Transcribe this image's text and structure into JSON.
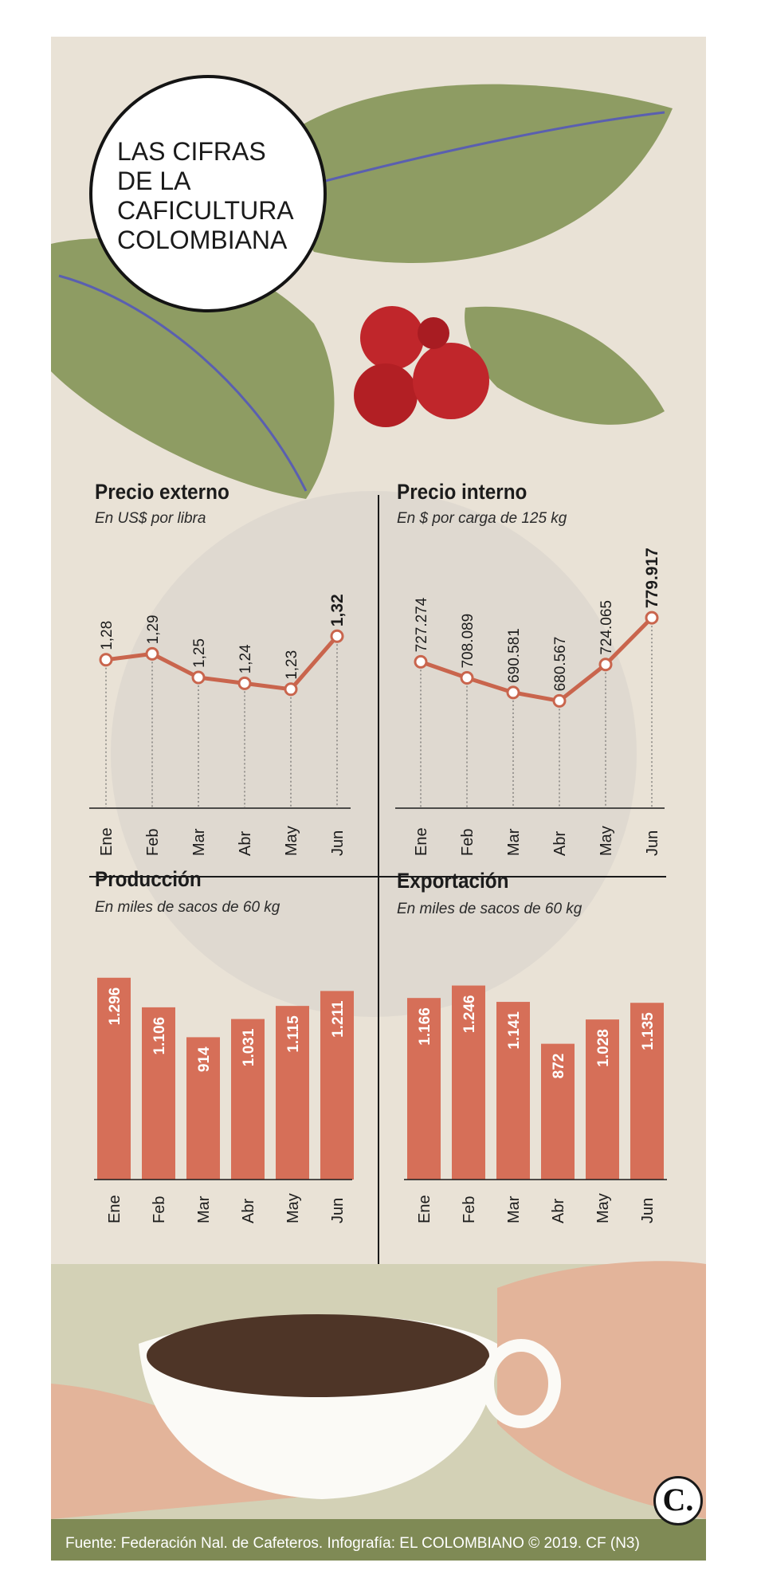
{
  "title": "LAS CIFRAS\nDE LA\nCAFICULTURA\nCOLOMBIANA",
  "colors": {
    "accent": "#d66f58",
    "line": "#c9654d",
    "background": "#e9e2d6",
    "leaf": "#8e9c63",
    "berry": "#c0262b"
  },
  "chart_data": [
    {
      "id": "precio-externo",
      "type": "line",
      "title": "Precio externo",
      "subtitle": "En US$ por libra",
      "categories": [
        "Ene",
        "Feb",
        "Mar",
        "Abr",
        "May",
        "Jun"
      ],
      "values": [
        1.28,
        1.29,
        1.25,
        1.24,
        1.23,
        1.32
      ],
      "labels": [
        "1,28",
        "1,29",
        "1,25",
        "1,24",
        "1,23",
        "1,32"
      ],
      "highlight_index": 5,
      "ylim": [
        1.15,
        1.35
      ]
    },
    {
      "id": "precio-interno",
      "type": "line",
      "title": "Precio interno",
      "subtitle": "En $ por carga de 125 kg",
      "categories": [
        "Ene",
        "Feb",
        "Mar",
        "Abr",
        "May",
        "Jun"
      ],
      "values": [
        727274,
        708089,
        690581,
        680567,
        724065,
        779917
      ],
      "labels": [
        "727.274",
        "708.089",
        "690.581",
        "680.567",
        "724.065",
        "779.917"
      ],
      "highlight_index": 5,
      "ylim": [
        600000,
        800000
      ]
    },
    {
      "id": "produccion",
      "type": "bar",
      "title": "Producción",
      "subtitle": "En miles de sacos de 60 kg",
      "categories": [
        "Ene",
        "Feb",
        "Mar",
        "Abr",
        "May",
        "Jun"
      ],
      "values": [
        1296,
        1106,
        914,
        1031,
        1115,
        1211
      ],
      "labels": [
        "1.296",
        "1.106",
        "914",
        "1.031",
        "1.115",
        "1.211"
      ],
      "ylim": [
        0,
        1300
      ]
    },
    {
      "id": "exportacion",
      "type": "bar",
      "title": "Exportación",
      "subtitle": "En miles de sacos de 60 kg",
      "categories": [
        "Ene",
        "Feb",
        "Mar",
        "Abr",
        "May",
        "Jun"
      ],
      "values": [
        1166,
        1246,
        1141,
        872,
        1028,
        1135
      ],
      "labels": [
        "1.166",
        "1.246",
        "1.141",
        "872",
        "1.028",
        "1.135"
      ],
      "ylim": [
        0,
        1300
      ]
    }
  ],
  "footer": "Fuente: Federación Nal. de Cafeteros. Infografía: EL COLOMBIANO © 2019. CF (N3)",
  "logo_text": "C."
}
